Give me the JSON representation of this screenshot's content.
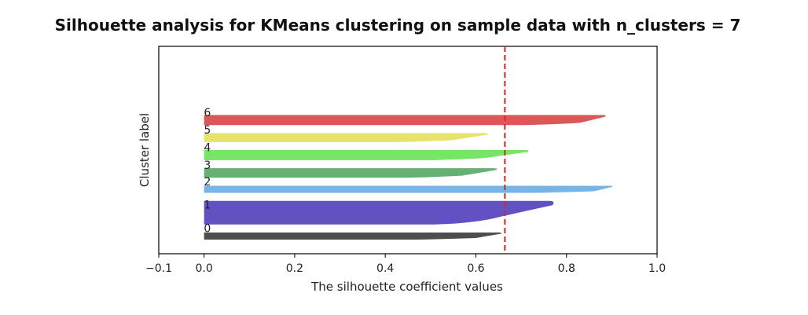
{
  "chart_data": {
    "type": "silhouette",
    "title": "Silhouette analysis for KMeans clustering on sample data with n_clusters = 7",
    "xlabel": "The silhouette coefficient values",
    "ylabel": "Cluster label",
    "xlim": [
      -0.1,
      1.0
    ],
    "xticks": [
      -0.1,
      0.0,
      0.2,
      0.4,
      0.6,
      0.8,
      1.0
    ],
    "xtick_labels": [
      "−0.1",
      "0.0",
      "0.2",
      "0.4",
      "0.6",
      "0.8",
      "1.0"
    ],
    "average_silhouette_score": 0.664,
    "average_line_color": "#d62728",
    "grid": false,
    "clusters": [
      {
        "label": "0",
        "color": "#2f2f2f",
        "size_rows": 9,
        "min": 0.0,
        "max": 0.66,
        "median": 0.6
      },
      {
        "label": "1",
        "color": "#4633b8",
        "size_rows": 36,
        "min": 0.0,
        "max": 0.775,
        "median": 0.63
      },
      {
        "label": "2",
        "color": "#5ea8e0",
        "size_rows": 9,
        "min": 0.0,
        "max": 0.905,
        "median": 0.86
      },
      {
        "label": "3",
        "color": "#4aa35a",
        "size_rows": 13,
        "min": 0.0,
        "max": 0.65,
        "median": 0.57
      },
      {
        "label": "4",
        "color": "#5fe04a",
        "size_rows": 14,
        "min": 0.0,
        "max": 0.72,
        "median": 0.62
      },
      {
        "label": "5",
        "color": "#e3dc54",
        "size_rows": 12,
        "min": 0.0,
        "max": 0.63,
        "median": 0.55
      },
      {
        "label": "6",
        "color": "#d63b3b",
        "size_rows": 14,
        "min": 0.0,
        "max": 0.89,
        "median": 0.83
      }
    ]
  }
}
